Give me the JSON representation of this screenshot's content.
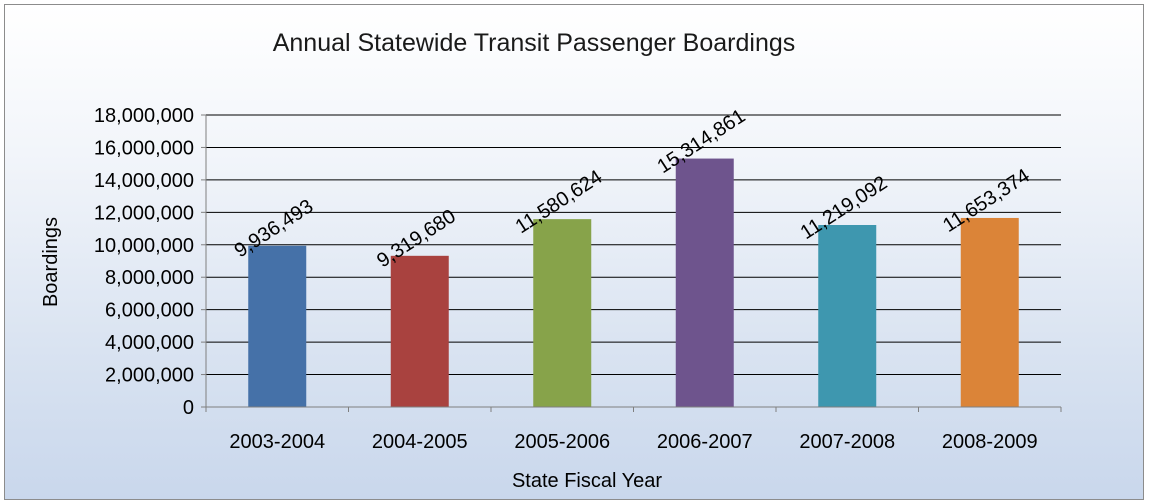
{
  "chart_data": {
    "type": "bar",
    "title": "Annual Statewide Transit Passenger Boardings",
    "xlabel": "State Fiscal Year",
    "ylabel": "Boardings",
    "categories": [
      "2003-2004",
      "2004-2005",
      "2005-2006",
      "2006-2007",
      "2007-2008",
      "2008-2009"
    ],
    "values": [
      9936493,
      9319680,
      11580624,
      15314861,
      11219092,
      11653374
    ],
    "data_labels": [
      "9,936,493",
      "9,319,680",
      "11,580,624",
      "15,314,861",
      "11,219,092",
      "11,653,374"
    ],
    "colors": [
      "#4571a8",
      "#a9423f",
      "#87a34a",
      "#6e548d",
      "#3e97af",
      "#db8438"
    ],
    "ylim": [
      0,
      18000000
    ],
    "yticks": [
      0,
      2000000,
      4000000,
      6000000,
      8000000,
      10000000,
      12000000,
      14000000,
      16000000,
      18000000
    ],
    "ytick_labels": [
      "0",
      "2,000,000",
      "4,000,000",
      "6,000,000",
      "8,000,000",
      "10,000,000",
      "12,000,000",
      "14,000,000",
      "16,000,000",
      "18,000,000"
    ],
    "grid": true,
    "legend": "none"
  }
}
